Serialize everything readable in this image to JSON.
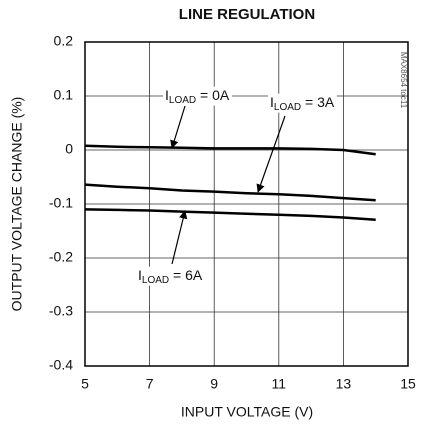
{
  "chart_data": {
    "type": "line",
    "title": "LINE REGULATION",
    "side_note": "MAX8654 toc11",
    "x_label": "INPUT VOLTAGE (V)",
    "y_label": "OUTPUT VOLTAGE CHANGE (%)",
    "x": [
      5,
      6,
      7,
      8,
      9,
      10,
      11,
      12,
      13,
      14
    ],
    "series": [
      {
        "name": "ILOAD = 0A",
        "color": "#000000",
        "values": [
          0.008,
          0.006,
          0.005,
          0.004,
          0.003,
          0.003,
          0.003,
          0.002,
          0,
          -0.008
        ]
      },
      {
        "name": "ILOAD = 3A",
        "color": "#000000",
        "values": [
          -0.064,
          -0.068,
          -0.071,
          -0.075,
          -0.077,
          -0.08,
          -0.082,
          -0.085,
          -0.089,
          -0.093
        ]
      },
      {
        "name": "ILOAD = 6A",
        "color": "#000000",
        "values": [
          -0.11,
          -0.111,
          -0.112,
          -0.114,
          -0.116,
          -0.118,
          -0.12,
          -0.122,
          -0.125,
          -0.129
        ]
      }
    ],
    "annotations": [
      {
        "prefix": "I",
        "sub": "LOAD",
        "suffix": " = 0A"
      },
      {
        "prefix": "I",
        "sub": "LOAD",
        "suffix": " = 3A"
      },
      {
        "prefix": "I",
        "sub": "LOAD",
        "suffix": " = 6A"
      }
    ],
    "xlim": [
      5,
      15
    ],
    "xticks": [
      5,
      7,
      9,
      11,
      13,
      15
    ],
    "ylim": [
      -0.4,
      0.2
    ],
    "yticks": [
      0.2,
      0.1,
      0,
      -0.1,
      -0.2,
      -0.3,
      -0.4
    ],
    "grid": true
  }
}
